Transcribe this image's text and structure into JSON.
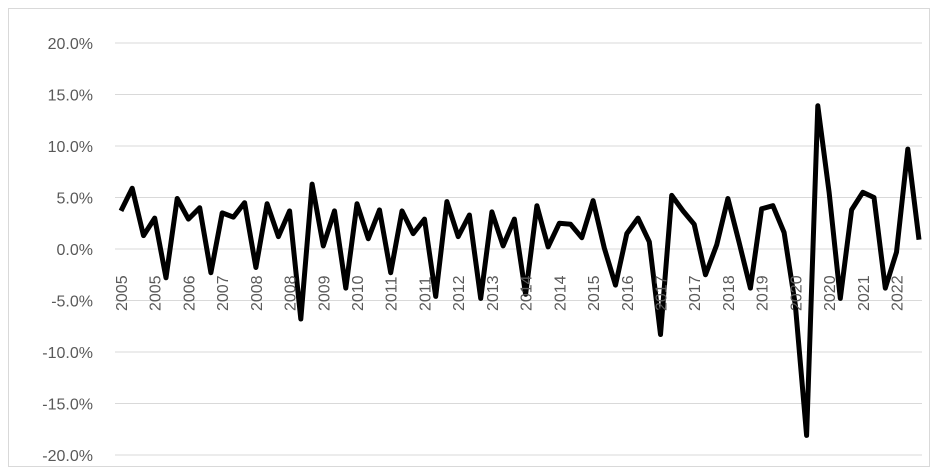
{
  "chart_data": {
    "type": "line",
    "title": "",
    "xlabel": "",
    "ylabel": "",
    "ylim": [
      -20,
      20
    ],
    "yticks": [
      "20.0%",
      "15.0%",
      "10.0%",
      "5.0%",
      "0.0%",
      "-5.0%",
      "-10.0%",
      "-15.0%",
      "-20.0%"
    ],
    "grid": "horizontal",
    "line_color": "#000000",
    "x": [
      "2005",
      "2005",
      "2005",
      "2005",
      "2006",
      "2006",
      "2006",
      "2006",
      "2007",
      "2007",
      "2007",
      "2007",
      "2008",
      "2008",
      "2008",
      "2008",
      "2009",
      "2009",
      "2009",
      "2009",
      "2010",
      "2010",
      "2010",
      "2010",
      "2011",
      "2011",
      "2011",
      "2011",
      "2012",
      "2012",
      "2012",
      "2012",
      "2013",
      "2013",
      "2013",
      "2013",
      "2014",
      "2014",
      "2014",
      "2014",
      "2015",
      "2015",
      "2015",
      "2015",
      "2016",
      "2016",
      "2016",
      "2016",
      "2017",
      "2017",
      "2017",
      "2017",
      "2018",
      "2018",
      "2018",
      "2018",
      "2019",
      "2019",
      "2019",
      "2019",
      "2020",
      "2020",
      "2020",
      "2020",
      "2021",
      "2021",
      "2021",
      "2021",
      "2022",
      "2022",
      "2022",
      "2022"
    ],
    "series": [
      {
        "values": [
          3.7,
          5.9,
          1.3,
          3.0,
          -2.8,
          4.9,
          2.9,
          4.0,
          -2.3,
          3.5,
          3.1,
          4.5,
          -1.8,
          4.4,
          1.2,
          3.7,
          -6.8,
          6.3,
          0.3,
          3.7,
          -3.8,
          4.4,
          1.0,
          3.8,
          -2.3,
          3.7,
          1.5,
          2.9,
          -4.6,
          4.6,
          1.2,
          3.3,
          -4.8,
          3.6,
          0.3,
          2.9,
          -4.4,
          4.2,
          0.2,
          2.5,
          2.4,
          1.1,
          4.7,
          0.1,
          -3.5,
          1.5,
          3.0,
          0.7,
          -8.3,
          5.2,
          3.7,
          2.4,
          -2.5,
          0.4,
          4.9,
          0.6,
          -3.8,
          3.9,
          4.2,
          1.6,
          -5.5,
          -18.1,
          13.9,
          5.5,
          -4.8,
          3.8,
          5.5,
          5.0,
          -3.8,
          -0.3,
          9.7,
          0.9
        ]
      }
    ],
    "x_tick_labels": [
      {
        "label": "2005",
        "index": 0
      },
      {
        "label": "2005",
        "index": 3
      },
      {
        "label": "2006",
        "index": 6
      },
      {
        "label": "2007",
        "index": 9
      },
      {
        "label": "2008",
        "index": 12
      },
      {
        "label": "2008",
        "index": 15
      },
      {
        "label": "2009",
        "index": 18
      },
      {
        "label": "2010",
        "index": 21
      },
      {
        "label": "2011",
        "index": 24
      },
      {
        "label": "2011",
        "index": 27
      },
      {
        "label": "2012",
        "index": 30
      },
      {
        "label": "2013",
        "index": 33
      },
      {
        "label": "2014",
        "index": 36
      },
      {
        "label": "2014",
        "index": 39
      },
      {
        "label": "2015",
        "index": 42
      },
      {
        "label": "2016",
        "index": 45
      },
      {
        "label": "2017",
        "index": 48
      },
      {
        "label": "2017",
        "index": 51
      },
      {
        "label": "2018",
        "index": 54
      },
      {
        "label": "2019",
        "index": 57
      },
      {
        "label": "2020",
        "index": 60
      },
      {
        "label": "2020",
        "index": 63
      },
      {
        "label": "2021",
        "index": 66
      },
      {
        "label": "2022",
        "index": 69
      }
    ]
  }
}
